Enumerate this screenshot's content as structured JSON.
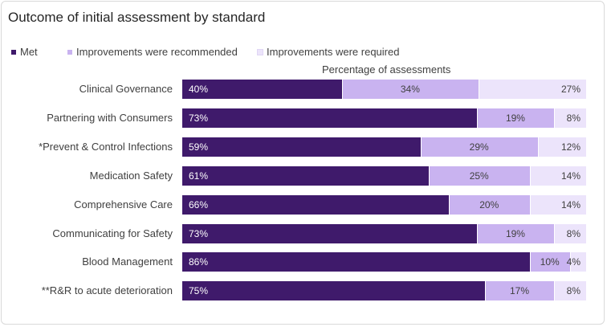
{
  "chart_data": {
    "type": "bar",
    "orientation": "horizontal",
    "stacked": true,
    "title": "Outcome of initial assessment by standard",
    "xlabel": "Percentage of assessments",
    "ylabel": "",
    "xlim": [
      0,
      100
    ],
    "grid": false,
    "legend_position": "top-left",
    "categories": [
      "Clinical Governance",
      "Partnering with Consumers",
      "*Prevent & Control Infections",
      "Medication Safety",
      "Comprehensive Care",
      "Communicating for Safety",
      "Blood Management",
      "**R&R to acute deterioration"
    ],
    "series": [
      {
        "name": "Met",
        "color": "#3f1a6b",
        "text_color": "#ffffff",
        "values": [
          40,
          73,
          59,
          61,
          66,
          73,
          86,
          75
        ]
      },
      {
        "name": "Improvements were recommended",
        "color": "#c9b3f0",
        "text_color": "#404040",
        "values": [
          34,
          19,
          29,
          25,
          20,
          19,
          10,
          17
        ]
      },
      {
        "name": "Improvements were required",
        "color": "#ece4fb",
        "text_color": "#404040",
        "values": [
          27,
          8,
          12,
          14,
          14,
          8,
          4,
          8
        ]
      }
    ],
    "data_labels": [
      [
        "40%",
        "73%",
        "59%",
        "61%",
        "66%",
        "73%",
        "86%",
        "75%"
      ],
      [
        "34%",
        "19%",
        "29%",
        "25%",
        "20%",
        "19%",
        "10%",
        "17%"
      ],
      [
        "27%",
        "8%",
        "12%",
        "14%",
        "14%",
        "8%",
        "4%",
        "8%"
      ]
    ]
  }
}
